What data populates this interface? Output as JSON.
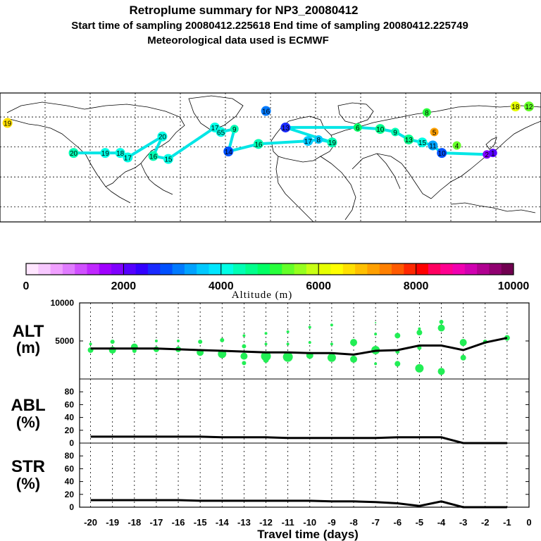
{
  "title": {
    "line1": "Retroplume summary for NP3_20080412",
    "line2": "Start time of sampling 20080412.225618     End time of sampling 20080412.225749",
    "line3": "Meteorological data used is ECMWF"
  },
  "colorbar": {
    "label": "Altitude (m)",
    "ticks": [
      "0",
      "2000",
      "4000",
      "6000",
      "8000",
      "10000"
    ],
    "min": 0,
    "max": 10000,
    "colors": [
      "#ffe6ff",
      "#f7c8ff",
      "#f0a0ff",
      "#e07cff",
      "#d050ff",
      "#c028ff",
      "#a000ff",
      "#8000ff",
      "#5500ff",
      "#3300ff",
      "#1a2aff",
      "#0050ff",
      "#007aff",
      "#00a2ff",
      "#00c8ff",
      "#00e6ff",
      "#00ffe6",
      "#00ffb4",
      "#00ff8c",
      "#00ff64",
      "#28ff3c",
      "#64ff28",
      "#96ff1e",
      "#c8ff14",
      "#e6ff00",
      "#ffff00",
      "#ffe000",
      "#ffc000",
      "#ffa000",
      "#ff8000",
      "#ff5a00",
      "#ff2800",
      "#ff0000",
      "#ff0060",
      "#ff0090",
      "#f000b0",
      "#d000b0",
      "#b00090",
      "#900070",
      "#700050"
    ]
  },
  "map": {
    "markers": [
      {
        "label": "20",
        "lon": -131,
        "lat": 46,
        "alt": 4400
      },
      {
        "label": "19",
        "lon": -110,
        "lat": 46,
        "alt": 4200
      },
      {
        "label": "18",
        "lon": -100,
        "lat": 46,
        "alt": 4200
      },
      {
        "label": "17",
        "lon": -95,
        "lat": 43,
        "alt": 4200
      },
      {
        "label": "20",
        "lon": -72,
        "lat": 57,
        "alt": 4000
      },
      {
        "label": "16",
        "lon": -78,
        "lat": 44,
        "alt": 4300
      },
      {
        "label": "15",
        "lon": -68,
        "lat": 42,
        "alt": 4200
      },
      {
        "label": "17",
        "lon": -37,
        "lat": 63,
        "alt": 4200
      },
      {
        "label": "65",
        "lon": -33,
        "lat": 60,
        "alt": 4000
      },
      {
        "label": "9",
        "lon": -24,
        "lat": 62,
        "alt": 4300
      },
      {
        "label": "14",
        "lon": -28,
        "lat": 47,
        "alt": 2800
      },
      {
        "label": "16",
        "lon": -8,
        "lat": 52,
        "alt": 4400
      },
      {
        "label": "17",
        "lon": 25,
        "lat": 54,
        "alt": 3600
      },
      {
        "label": "8",
        "lon": 32,
        "lat": 55,
        "alt": 3700
      },
      {
        "label": "19",
        "lon": 41,
        "lat": 53,
        "alt": 4400
      },
      {
        "label": "13",
        "lon": 10,
        "lat": 63,
        "alt": 2600
      },
      {
        "label": "6",
        "lon": 58,
        "lat": 63,
        "alt": 4800
      },
      {
        "label": "10",
        "lon": 73,
        "lat": 62,
        "alt": 4600
      },
      {
        "label": "9",
        "lon": 83,
        "lat": 60,
        "alt": 4400
      },
      {
        "label": "13",
        "lon": 92,
        "lat": 55,
        "alt": 4500
      },
      {
        "label": "15",
        "lon": 101,
        "lat": 53,
        "alt": 4000
      },
      {
        "label": "11",
        "lon": 108,
        "lat": 51,
        "alt": 3400
      },
      {
        "label": "10",
        "lon": 114,
        "lat": 46,
        "alt": 2900
      },
      {
        "label": "2",
        "lon": 144,
        "lat": 45,
        "alt": 1800
      },
      {
        "label": "5",
        "lon": 109,
        "lat": 60,
        "alt": 7000
      },
      {
        "label": "4",
        "lon": 124,
        "lat": 51,
        "alt": 5300
      },
      {
        "label": "8",
        "lon": 104,
        "lat": 73,
        "alt": 5000
      },
      {
        "label": "1",
        "lon": 148,
        "lat": 46,
        "alt": 2000
      },
      {
        "label": "19",
        "lon": -175,
        "lat": 66,
        "alt": 6500
      },
      {
        "label": "16",
        "lon": -3,
        "lat": 74,
        "alt": 3000
      },
      {
        "label": "18",
        "lon": 163,
        "lat": 77,
        "alt": 6200
      },
      {
        "label": "12",
        "lon": 172,
        "lat": 77,
        "alt": 5300
      }
    ]
  },
  "chart_data": [
    {
      "type": "scatter",
      "panel": "ALT",
      "ylabel": "ALT (m)",
      "ylim": [
        0,
        10000
      ],
      "yticks": [
        5000,
        10000
      ],
      "xlim": [
        -20.5,
        0
      ],
      "line": {
        "x": [
          -20,
          -19,
          -18,
          -17,
          -16,
          -15,
          -14,
          -13,
          -12,
          -11,
          -10,
          -9,
          -8,
          -7,
          -6,
          -5,
          -4,
          -3,
          -2,
          -1
        ],
        "y": [
          4000,
          4000,
          4000,
          4000,
          3900,
          3800,
          3700,
          3600,
          3500,
          3500,
          3400,
          3400,
          3200,
          3700,
          3800,
          4400,
          4400,
          3800,
          4800,
          5400
        ]
      },
      "points": [
        {
          "x": -20,
          "y": 4600,
          "r": 2
        },
        {
          "x": -20,
          "y": 3800,
          "r": 4
        },
        {
          "x": -19,
          "y": 4900,
          "r": 3
        },
        {
          "x": -19,
          "y": 3800,
          "r": 5
        },
        {
          "x": -18,
          "y": 4200,
          "r": 5
        },
        {
          "x": -18,
          "y": 3700,
          "r": 3
        },
        {
          "x": -17,
          "y": 5000,
          "r": 2
        },
        {
          "x": -17,
          "y": 3900,
          "r": 4
        },
        {
          "x": -16,
          "y": 5000,
          "r": 2
        },
        {
          "x": -16,
          "y": 3900,
          "r": 4
        },
        {
          "x": -15,
          "y": 4900,
          "r": 3
        },
        {
          "x": -15,
          "y": 3500,
          "r": 5
        },
        {
          "x": -14,
          "y": 5100,
          "r": 3
        },
        {
          "x": -14,
          "y": 3300,
          "r": 6
        },
        {
          "x": -13,
          "y": 5700,
          "r": 2
        },
        {
          "x": -13,
          "y": 4300,
          "r": 3
        },
        {
          "x": -13,
          "y": 3000,
          "r": 5
        },
        {
          "x": -13,
          "y": 2100,
          "r": 3
        },
        {
          "x": -12,
          "y": 6000,
          "r": 2
        },
        {
          "x": -12,
          "y": 4600,
          "r": 2
        },
        {
          "x": -12,
          "y": 3000,
          "r": 7
        },
        {
          "x": -12,
          "y": 2500,
          "r": 4
        },
        {
          "x": -11,
          "y": 6200,
          "r": 2
        },
        {
          "x": -11,
          "y": 4600,
          "r": 2
        },
        {
          "x": -11,
          "y": 2900,
          "r": 7
        },
        {
          "x": -10,
          "y": 6800,
          "r": 2
        },
        {
          "x": -10,
          "y": 4800,
          "r": 2
        },
        {
          "x": -10,
          "y": 3100,
          "r": 5
        },
        {
          "x": -9,
          "y": 7100,
          "r": 2
        },
        {
          "x": -9,
          "y": 4600,
          "r": 2
        },
        {
          "x": -9,
          "y": 2800,
          "r": 6
        },
        {
          "x": -8,
          "y": 4800,
          "r": 5
        },
        {
          "x": -8,
          "y": 2600,
          "r": 5
        },
        {
          "x": -7,
          "y": 7400,
          "r": 1
        },
        {
          "x": -7,
          "y": 5900,
          "r": 2
        },
        {
          "x": -7,
          "y": 3800,
          "r": 6
        },
        {
          "x": -7,
          "y": 2000,
          "r": 2
        },
        {
          "x": -6,
          "y": 5700,
          "r": 4
        },
        {
          "x": -6,
          "y": 3600,
          "r": 3
        },
        {
          "x": -6,
          "y": 2000,
          "r": 4
        },
        {
          "x": -5,
          "y": 6600,
          "r": 2
        },
        {
          "x": -5,
          "y": 6100,
          "r": 4
        },
        {
          "x": -5,
          "y": 4100,
          "r": 3
        },
        {
          "x": -5,
          "y": 1400,
          "r": 6
        },
        {
          "x": -4,
          "y": 7500,
          "r": 3
        },
        {
          "x": -4,
          "y": 6700,
          "r": 5
        },
        {
          "x": -4,
          "y": 1000,
          "r": 5
        },
        {
          "x": -3,
          "y": 4800,
          "r": 5
        },
        {
          "x": -3,
          "y": 2800,
          "r": 4
        },
        {
          "x": -2,
          "y": 4900,
          "r": 3
        },
        {
          "x": -1,
          "y": 5400,
          "r": 4
        }
      ]
    },
    {
      "type": "line",
      "panel": "ABL",
      "ylabel": "ABL (%)",
      "ylim": [
        0,
        100
      ],
      "yticks": [
        0,
        20,
        40,
        60,
        80
      ],
      "xlim": [
        -20.5,
        0
      ],
      "x": [
        -20,
        -19,
        -18,
        -17,
        -16,
        -15,
        -14,
        -13,
        -12,
        -11,
        -10,
        -9,
        -8,
        -7,
        -6,
        -5,
        -4,
        -3,
        -2,
        -1
      ],
      "y": [
        10,
        10,
        10,
        10,
        10,
        10,
        9,
        9,
        9,
        8,
        8,
        8,
        8,
        8,
        9,
        9,
        9,
        0,
        0,
        0
      ]
    },
    {
      "type": "line",
      "panel": "STR",
      "ylabel": "STR (%)",
      "ylim": [
        0,
        100
      ],
      "yticks": [
        0,
        20,
        40,
        60,
        80
      ],
      "xlim": [
        -20.5,
        0
      ],
      "x": [
        -20,
        -19,
        -18,
        -17,
        -16,
        -15,
        -14,
        -13,
        -12,
        -11,
        -10,
        -9,
        -8,
        -7,
        -6,
        -5,
        -4,
        -3,
        -2,
        -1
      ],
      "y": [
        11,
        11,
        11,
        11,
        11,
        10,
        10,
        10,
        10,
        10,
        10,
        9,
        9,
        8,
        6,
        2,
        9,
        0,
        0,
        0
      ]
    }
  ],
  "xaxis": {
    "ticks": [
      "-20",
      "-19",
      "-18",
      "-17",
      "-16",
      "-15",
      "-14",
      "-13",
      "-12",
      "-11",
      "-10",
      "-9",
      "-8",
      "-7",
      "-6",
      "-5",
      "-4",
      "-3",
      "-2",
      "-1",
      "0"
    ],
    "label": "Travel time (days)"
  },
  "panel_labels": {
    "alt": [
      "ALT",
      "(m)"
    ],
    "abl": [
      "ABL",
      "(%)"
    ],
    "str": [
      "STR",
      "(%)"
    ]
  },
  "alt_axis_ticks": [
    "5000",
    "10000"
  ],
  "pct_axis_ticks": [
    "0",
    "20",
    "40",
    "60",
    "80"
  ]
}
